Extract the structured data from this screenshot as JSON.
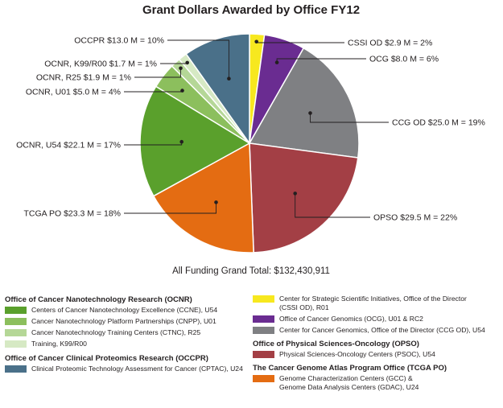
{
  "chart_data": {
    "type": "pie",
    "title": "Grant Dollars Awarded by Office FY12",
    "total_label": "All Funding Grand Total: $132,430,911",
    "slices": [
      {
        "key": "cssi_od",
        "label": "CSSI OD $2.9 M = 2%",
        "value": 2.9,
        "percent": 2,
        "color": "#f7e81f"
      },
      {
        "key": "ocg",
        "label": "OCG $8.0 M = 6%",
        "value": 8.0,
        "percent": 6,
        "color": "#6a2c91"
      },
      {
        "key": "ccg_od",
        "label": "CCG OD $25.0 M = 19%",
        "value": 25.0,
        "percent": 19,
        "color": "#7f8083"
      },
      {
        "key": "opso",
        "label": "OPSO $29.5 M = 22%",
        "value": 29.5,
        "percent": 22,
        "color": "#a33f45"
      },
      {
        "key": "tcga_po",
        "label": "TCGA PO $23.3 M = 18%",
        "value": 23.3,
        "percent": 18,
        "color": "#e46c12"
      },
      {
        "key": "ocnr_u54",
        "label": "OCNR, U54 $22.1 M = 17%",
        "value": 22.1,
        "percent": 17,
        "color": "#5aa02c"
      },
      {
        "key": "ocnr_u01",
        "label": "OCNR, U01 $5.0 M = 4%",
        "value": 5.0,
        "percent": 4,
        "color": "#8cbf5d"
      },
      {
        "key": "ocnr_r25",
        "label": "OCNR, R25 $1.9 M = 1%",
        "value": 1.9,
        "percent": 1,
        "color": "#b5d797"
      },
      {
        "key": "ocnr_k99",
        "label": "OCNR, K99/R00 $1.7 M = 1%",
        "value": 1.7,
        "percent": 1,
        "color": "#d6e9c4"
      },
      {
        "key": "occpr",
        "label": "OCCPR $13.0 M = 10%",
        "value": 13.0,
        "percent": 10,
        "color": "#4a7089"
      }
    ]
  },
  "legend": {
    "left": [
      {
        "group": "Office of Cancer Nanotechnology Research (OCNR)",
        "entries": [
          {
            "label": "Centers of Cancer Nanotechnology Excellence (CCNE), U54",
            "color": "#5aa02c"
          },
          {
            "label": "Cancer Nanotechnology Platform Partnerships (CNPP), U01",
            "color": "#8cbf5d"
          },
          {
            "label": "Cancer Nanotechnology Training Centers (CTNC), R25",
            "color": "#b5d797"
          },
          {
            "label": "Training, K99/R00",
            "color": "#d6e9c4"
          }
        ]
      },
      {
        "group": "Office of Cancer Clinical Proteomics Research (OCCPR)",
        "entries": [
          {
            "label": "Clinical Proteomic Technology Assessment for Cancer (CPTAC), U24",
            "color": "#4a7089"
          }
        ]
      }
    ],
    "right": [
      {
        "group": "",
        "entries": [
          {
            "label": "Center for Strategic Scientific Initiatives, Office of the Director\n(CSSI OD), R01",
            "color": "#f7e81f"
          },
          {
            "label": "Office of Cancer Genomics (OCG), U01 & RC2",
            "color": "#6a2c91"
          },
          {
            "label": "Center for Cancer Genomics, Office of the Director (CCG OD), U54",
            "color": "#7f8083"
          }
        ]
      },
      {
        "group": "Office of Physical Sciences-Oncology (OPSO)",
        "entries": [
          {
            "label": "Physical Sciences-Oncology Centers (PSOC), U54",
            "color": "#a33f45"
          }
        ]
      },
      {
        "group": "The Cancer Genome Atlas Program Office (TCGA PO)",
        "entries": [
          {
            "label": "Genome Characterization Centers (GCC) &\nGenome Data Analysis Centers (GDAC), U24",
            "color": "#e46c12"
          }
        ]
      }
    ]
  }
}
